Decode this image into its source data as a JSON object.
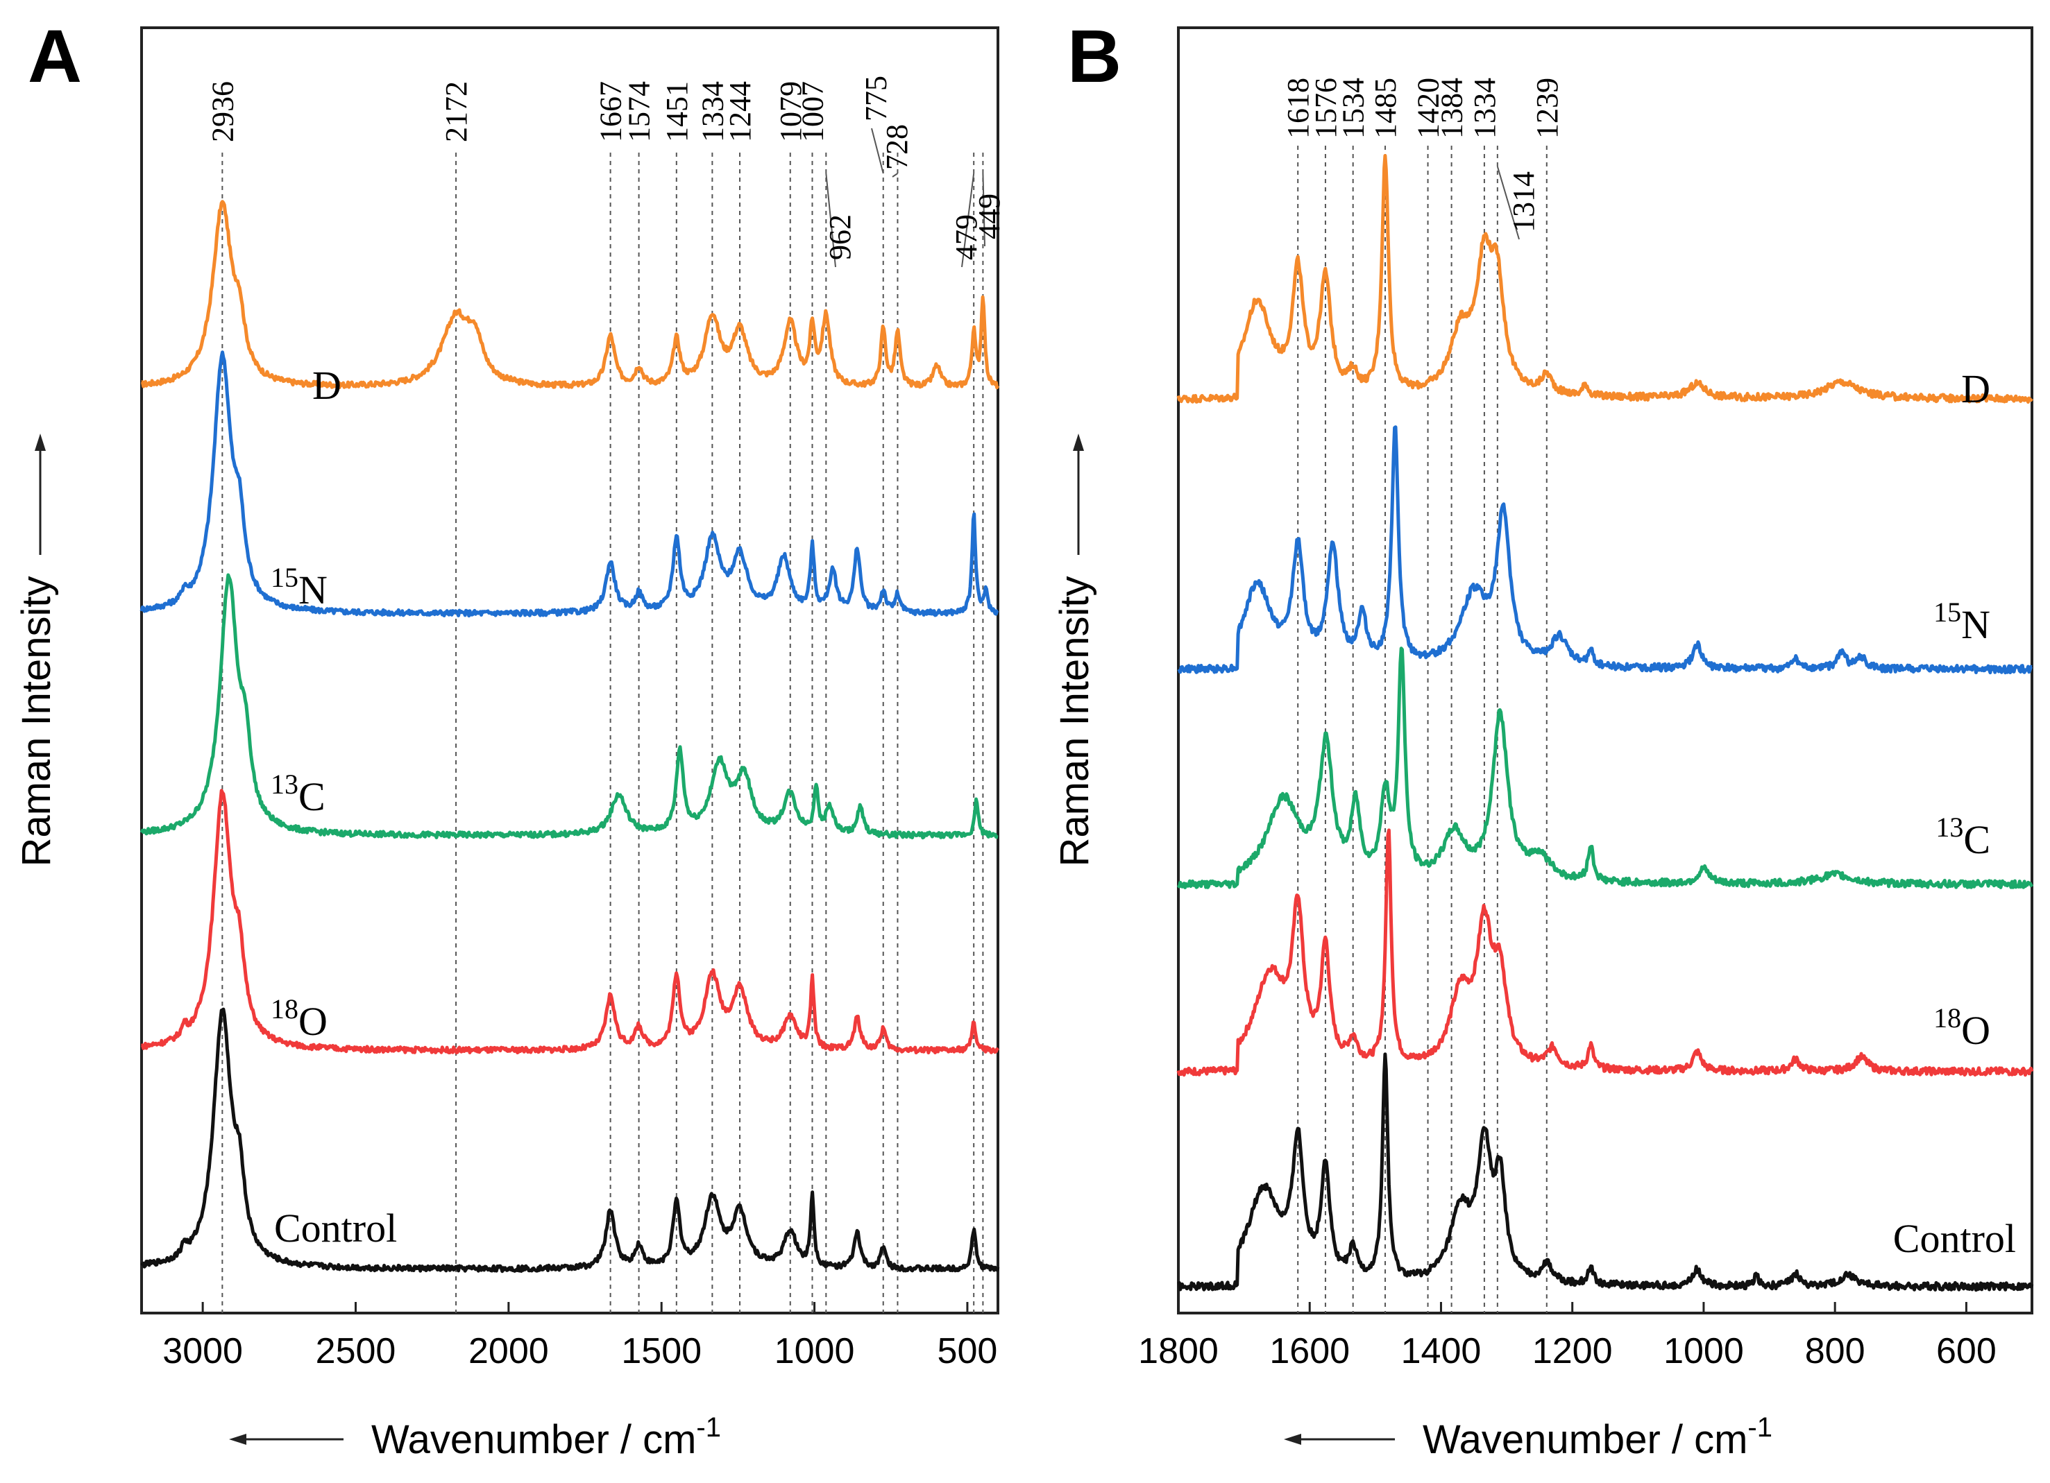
{
  "chart_data": [
    {
      "panel": "A",
      "type": "line",
      "xlabel": "Wavenumber / cm",
      "xlabel_sup": "-1",
      "ylabel": "Raman Intensity",
      "xlim": [
        3200,
        400
      ],
      "reversed": true,
      "grid": false,
      "ticks": [
        "3000",
        "2500",
        "2000",
        "1500",
        "1000",
        "500"
      ],
      "tick_values": [
        3000,
        2500,
        2000,
        1500,
        1000,
        500
      ],
      "markers": [
        {
          "x": 2936,
          "label": "2936"
        },
        {
          "x": 2172,
          "label": "2172"
        },
        {
          "x": 1667,
          "label": "1667"
        },
        {
          "x": 1574,
          "label": "1574"
        },
        {
          "x": 1451,
          "label": "1451"
        },
        {
          "x": 1334,
          "label": "1334"
        },
        {
          "x": 1244,
          "label": "1244"
        },
        {
          "x": 1079,
          "label": "1079"
        },
        {
          "x": 1007,
          "label": "1007"
        },
        {
          "x": 962,
          "label": "962"
        },
        {
          "x": 775,
          "label": "775"
        },
        {
          "x": 728,
          "label": "728"
        },
        {
          "x": 479,
          "label": "479"
        },
        {
          "x": 449,
          "label": "449"
        }
      ],
      "series": [
        {
          "name": "D",
          "iso_sup": "",
          "iso_el": "D",
          "color": "#F5892A",
          "offset": 4.0,
          "peaks": [
            [
              2936,
              1.0,
              38
            ],
            [
              2880,
              0.25,
              20
            ],
            [
              2172,
              0.38,
              55
            ],
            [
              2110,
              0.2,
              30
            ],
            [
              1667,
              0.28,
              18
            ],
            [
              1574,
              0.1,
              15
            ],
            [
              1451,
              0.25,
              14
            ],
            [
              1334,
              0.38,
              30
            ],
            [
              1244,
              0.3,
              30
            ],
            [
              1079,
              0.35,
              25
            ],
            [
              1007,
              0.3,
              10
            ],
            [
              962,
              0.38,
              16
            ],
            [
              775,
              0.32,
              10
            ],
            [
              728,
              0.3,
              10
            ],
            [
              600,
              0.12,
              15
            ],
            [
              479,
              0.3,
              8
            ],
            [
              449,
              0.5,
              7
            ]
          ]
        },
        {
          "name": "15N",
          "iso_sup": "15",
          "iso_el": "N",
          "color": "#1F6FD1",
          "offset": 3.0,
          "peaks": [
            [
              2936,
              1.4,
              35
            ],
            [
              2880,
              0.35,
              20
            ],
            [
              3060,
              0.06,
              10
            ],
            [
              1667,
              0.28,
              18
            ],
            [
              1574,
              0.1,
              15
            ],
            [
              1451,
              0.4,
              14
            ],
            [
              1334,
              0.4,
              30
            ],
            [
              1244,
              0.3,
              30
            ],
            [
              1100,
              0.3,
              25
            ],
            [
              1007,
              0.35,
              8
            ],
            [
              940,
              0.22,
              15
            ],
            [
              860,
              0.35,
              12
            ],
            [
              775,
              0.12,
              10
            ],
            [
              728,
              0.1,
              10
            ],
            [
              479,
              0.55,
              7
            ],
            [
              440,
              0.12,
              8
            ]
          ]
        },
        {
          "name": "13C",
          "iso_sup": "13",
          "iso_el": "C",
          "color": "#1BA96A",
          "offset": 2.0,
          "peaks": [
            [
              2915,
              1.4,
              35
            ],
            [
              2860,
              0.35,
              20
            ],
            [
              1640,
              0.22,
              30
            ],
            [
              1440,
              0.45,
              14
            ],
            [
              1310,
              0.38,
              35
            ],
            [
              1230,
              0.3,
              30
            ],
            [
              1080,
              0.22,
              25
            ],
            [
              995,
              0.25,
              8
            ],
            [
              950,
              0.15,
              15
            ],
            [
              850,
              0.15,
              12
            ],
            [
              470,
              0.2,
              7
            ]
          ]
        },
        {
          "name": "18O",
          "iso_sup": "18",
          "iso_el": "O",
          "color": "#F03A3A",
          "offset": 1.0,
          "peaks": [
            [
              2936,
              1.4,
              35
            ],
            [
              2880,
              0.35,
              20
            ],
            [
              3060,
              0.06,
              10
            ],
            [
              1667,
              0.3,
              18
            ],
            [
              1574,
              0.12,
              15
            ],
            [
              1451,
              0.4,
              14
            ],
            [
              1334,
              0.4,
              30
            ],
            [
              1244,
              0.32,
              30
            ],
            [
              1079,
              0.18,
              25
            ],
            [
              1007,
              0.38,
              7
            ],
            [
              860,
              0.18,
              12
            ],
            [
              775,
              0.12,
              10
            ],
            [
              479,
              0.15,
              8
            ]
          ]
        },
        {
          "name": "Control",
          "iso_sup": "",
          "iso_el": "Control",
          "color": "#111111",
          "offset": 0.0,
          "peaks": [
            [
              2936,
              1.4,
              35
            ],
            [
              2880,
              0.35,
              20
            ],
            [
              3060,
              0.06,
              10
            ],
            [
              1667,
              0.32,
              18
            ],
            [
              1574,
              0.12,
              15
            ],
            [
              1451,
              0.35,
              14
            ],
            [
              1334,
              0.38,
              30
            ],
            [
              1244,
              0.3,
              30
            ],
            [
              1079,
              0.2,
              25
            ],
            [
              1007,
              0.4,
              7
            ],
            [
              860,
              0.2,
              12
            ],
            [
              775,
              0.12,
              10
            ],
            [
              479,
              0.22,
              8
            ]
          ]
        }
      ]
    },
    {
      "panel": "B",
      "type": "line",
      "xlabel": "Wavenumber / cm",
      "xlabel_sup": "-1",
      "ylabel": "Raman Intensity",
      "xlim": [
        1800,
        500
      ],
      "reversed": true,
      "grid": false,
      "ticks": [
        "1800",
        "1600",
        "1400",
        "1200",
        "1000",
        "800",
        "600"
      ],
      "tick_values": [
        1800,
        1600,
        1400,
        1200,
        1000,
        800,
        600
      ],
      "markers": [
        {
          "x": 1618,
          "label": "1618"
        },
        {
          "x": 1576,
          "label": "1576"
        },
        {
          "x": 1534,
          "label": "1534"
        },
        {
          "x": 1485,
          "label": "1485"
        },
        {
          "x": 1420,
          "label": "1420"
        },
        {
          "x": 1384,
          "label": "1384"
        },
        {
          "x": 1334,
          "label": "1334"
        },
        {
          "x": 1314,
          "label": "1314"
        },
        {
          "x": 1239,
          "label": "1239"
        }
      ],
      "series": [
        {
          "name": "D",
          "iso_sup": "",
          "iso_el": "D",
          "color": "#F5892A",
          "offset": 4.0,
          "peaks": [
            [
              1680,
              0.4,
              25
            ],
            [
              1618,
              0.5,
              10
            ],
            [
              1576,
              0.48,
              10
            ],
            [
              1534,
              0.08,
              8
            ],
            [
              1485,
              1.0,
              6
            ],
            [
              1370,
              0.25,
              20
            ],
            [
              1334,
              0.52,
              15
            ],
            [
              1314,
              0.4,
              12
            ],
            [
              1239,
              0.08,
              10
            ],
            [
              1180,
              0.05,
              5
            ],
            [
              1010,
              0.06,
              15
            ],
            [
              790,
              0.07,
              30
            ]
          ]
        },
        {
          "name": "15N",
          "iso_sup": "15",
          "iso_el": "N",
          "color": "#1F6FD1",
          "offset": 3.0,
          "peaks": [
            [
              1680,
              0.35,
              25
            ],
            [
              1618,
              0.48,
              10
            ],
            [
              1565,
              0.5,
              10
            ],
            [
              1520,
              0.2,
              8
            ],
            [
              1470,
              1.0,
              6
            ],
            [
              1350,
              0.3,
              25
            ],
            [
              1305,
              0.62,
              12
            ],
            [
              1220,
              0.12,
              15
            ],
            [
              1172,
              0.06,
              5
            ],
            [
              1010,
              0.1,
              8
            ],
            [
              860,
              0.05,
              5
            ],
            [
              790,
              0.07,
              8
            ],
            [
              760,
              0.05,
              8
            ]
          ]
        },
        {
          "name": "13C",
          "iso_sup": "13",
          "iso_el": "C",
          "color": "#1BA96A",
          "offset": 2.0,
          "peaks": [
            [
              1640,
              0.35,
              30
            ],
            [
              1575,
              0.55,
              12
            ],
            [
              1530,
              0.3,
              8
            ],
            [
              1485,
              0.35,
              8
            ],
            [
              1460,
              0.95,
              6
            ],
            [
              1380,
              0.2,
              20
            ],
            [
              1310,
              0.7,
              14
            ],
            [
              1250,
              0.1,
              20
            ],
            [
              1172,
              0.15,
              5
            ],
            [
              1000,
              0.06,
              10
            ],
            [
              800,
              0.04,
              30
            ]
          ]
        },
        {
          "name": "18O",
          "iso_sup": "18",
          "iso_el": "O",
          "color": "#F03A3A",
          "offset": 1.0,
          "peaks": [
            [
              1660,
              0.4,
              30
            ],
            [
              1618,
              0.6,
              10
            ],
            [
              1576,
              0.48,
              8
            ],
            [
              1534,
              0.1,
              8
            ],
            [
              1480,
              1.0,
              5
            ],
            [
              1370,
              0.3,
              20
            ],
            [
              1334,
              0.55,
              14
            ],
            [
              1310,
              0.35,
              12
            ],
            [
              1230,
              0.08,
              10
            ],
            [
              1172,
              0.1,
              5
            ],
            [
              1010,
              0.08,
              8
            ],
            [
              860,
              0.05,
              8
            ],
            [
              760,
              0.06,
              12
            ]
          ]
        },
        {
          "name": "Control",
          "iso_sup": "",
          "iso_el": "Control",
          "color": "#111111",
          "offset": 0.0,
          "peaks": [
            [
              1670,
              0.4,
              30
            ],
            [
              1618,
              0.55,
              10
            ],
            [
              1576,
              0.47,
              8
            ],
            [
              1534,
              0.12,
              8
            ],
            [
              1485,
              0.95,
              5
            ],
            [
              1370,
              0.3,
              20
            ],
            [
              1334,
              0.55,
              12
            ],
            [
              1310,
              0.4,
              10
            ],
            [
              1239,
              0.08,
              10
            ],
            [
              1172,
              0.08,
              5
            ],
            [
              1010,
              0.07,
              8
            ],
            [
              920,
              0.06,
              3
            ],
            [
              860,
              0.05,
              8
            ],
            [
              780,
              0.05,
              15
            ]
          ]
        }
      ]
    }
  ]
}
